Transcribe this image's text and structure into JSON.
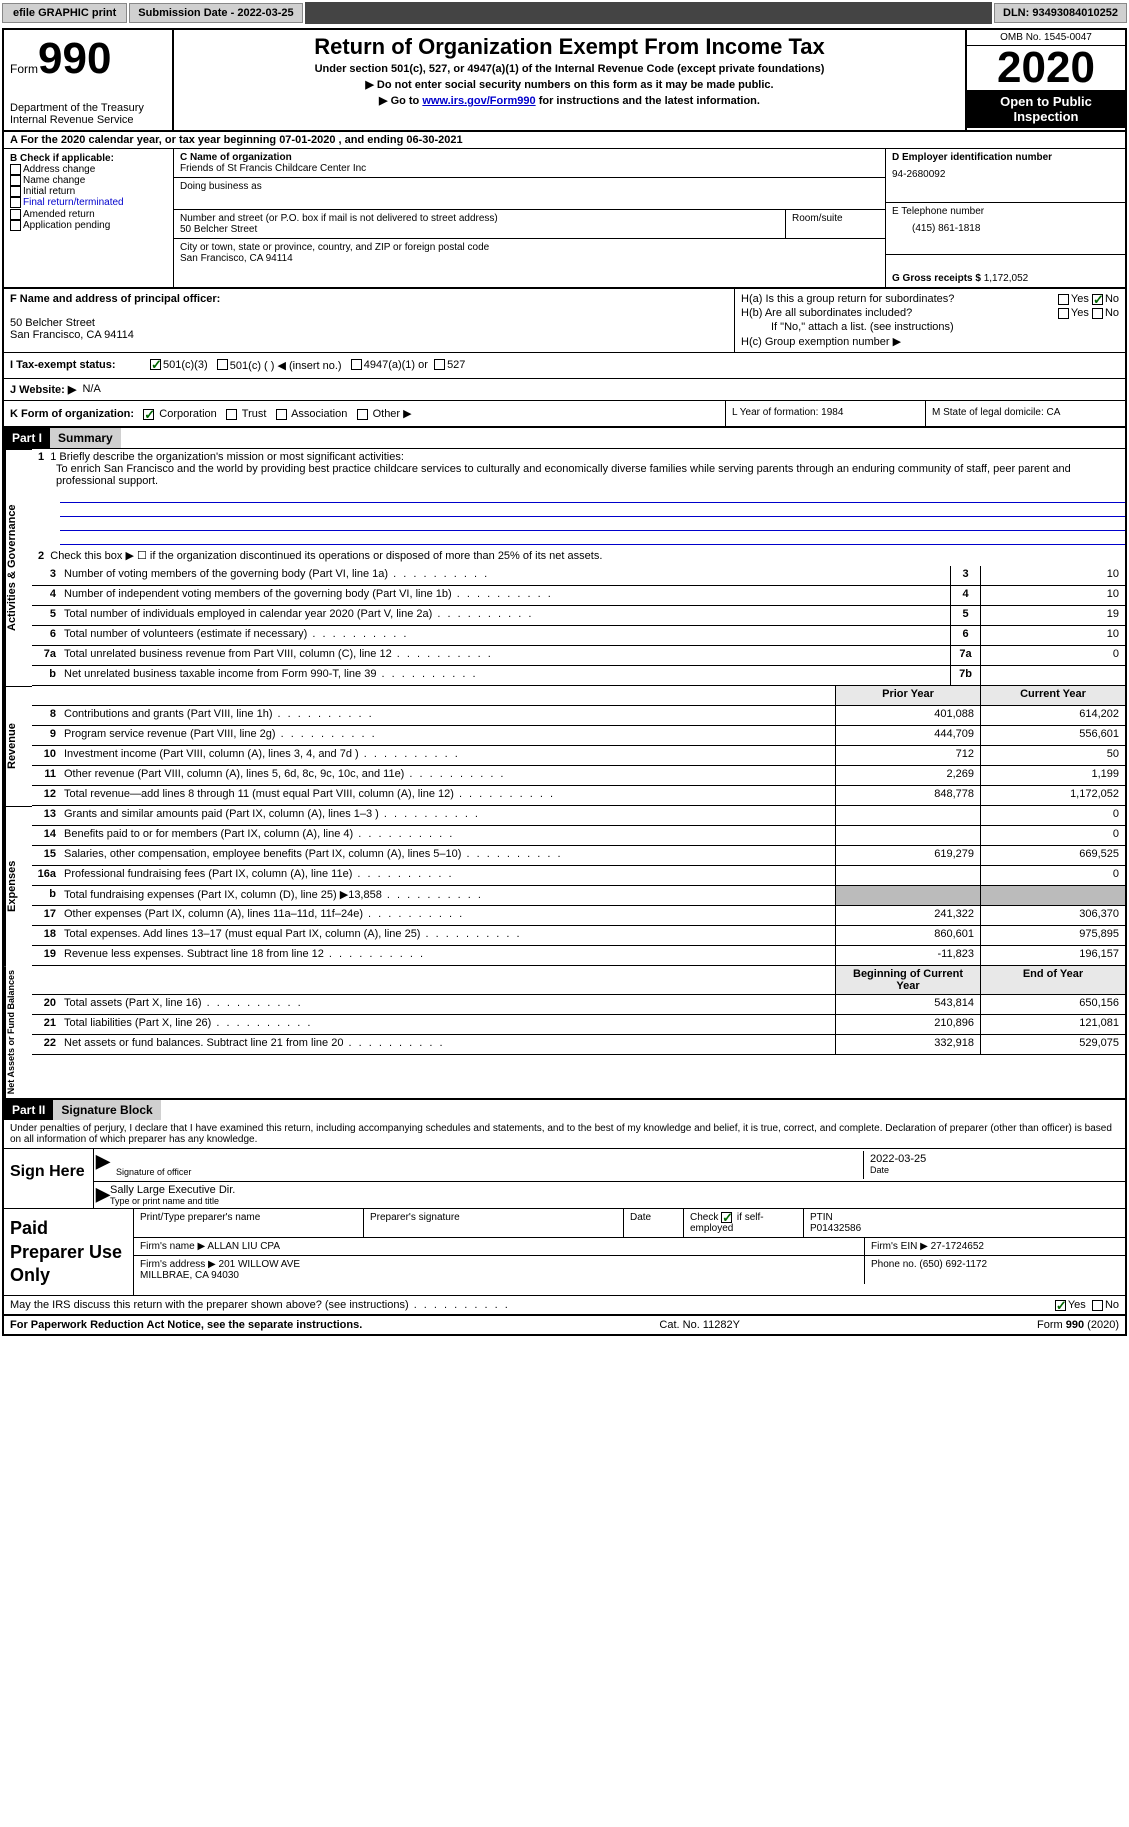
{
  "topbar": {
    "efile": "efile GRAPHIC print",
    "subdate_lbl": "Submission Date -",
    "subdate": "2022-03-25",
    "dln_lbl": "DLN:",
    "dln": "93493084010252"
  },
  "header": {
    "form_word": "Form",
    "form_num": "990",
    "dept": "Department of the Treasury\nInternal Revenue Service",
    "title": "Return of Organization Exempt From Income Tax",
    "sub1": "Under section 501(c), 527, or 4947(a)(1) of the Internal Revenue Code (except private foundations)",
    "sub2": "▶ Do not enter social security numbers on this form as it may be made public.",
    "sub3_pre": "▶ Go to ",
    "sub3_link": "www.irs.gov/Form990",
    "sub3_post": " for instructions and the latest information.",
    "omb": "OMB No. 1545-0047",
    "year": "2020",
    "open": "Open to Public Inspection"
  },
  "rowA": "A For the 2020 calendar year, or tax year beginning 07-01-2020    , and ending 06-30-2021",
  "colB": {
    "hdr": "B Check if applicable:",
    "opts": [
      "Address change",
      "Name change",
      "Initial return",
      "Final return/terminated",
      "Amended return",
      "Application pending"
    ]
  },
  "colC": {
    "name_lbl": "C Name of organization",
    "name": "Friends of St Francis Childcare Center Inc",
    "dba_lbl": "Doing business as",
    "addr_lbl": "Number and street (or P.O. box if mail is not delivered to street address)",
    "room_lbl": "Room/suite",
    "addr": "50 Belcher Street",
    "city_lbl": "City or town, state or province, country, and ZIP or foreign postal code",
    "city": "San Francisco, CA  94114"
  },
  "colD": {
    "ein_lbl": "D Employer identification number",
    "ein": "94-2680092",
    "tel_lbl": "E Telephone number",
    "tel": "(415) 861-1818",
    "gross_lbl": "G Gross receipts $",
    "gross": "1,172,052"
  },
  "sectionF": {
    "f_lbl": "F Name and address of principal officer:",
    "f_addr": "50 Belcher Street\nSan Francisco, CA  94114",
    "ha": "H(a)  Is this a group return for subordinates?",
    "hb": "H(b)  Are all subordinates included?",
    "hb_note": "If \"No,\" attach a list. (see instructions)",
    "hc": "H(c)  Group exemption number ▶",
    "yes": "Yes",
    "no": "No"
  },
  "rowI": {
    "lbl": "I  Tax-exempt status:",
    "o1": "501(c)(3)",
    "o2": "501(c) (   ) ◀ (insert no.)",
    "o3": "4947(a)(1) or",
    "o4": "527"
  },
  "rowJ": {
    "lbl": "J  Website: ▶",
    "val": "N/A"
  },
  "rowK": {
    "lbl": "K Form of organization:",
    "o1": "Corporation",
    "o2": "Trust",
    "o3": "Association",
    "o4": "Other ▶",
    "l": "L Year of formation: 1984",
    "m": "M State of legal domicile: CA"
  },
  "part1": {
    "hdr": "Part I",
    "title": "Summary",
    "l1_lbl": "1  Briefly describe the organization's mission or most significant activities:",
    "l1_text": "To enrich San Francisco and the world by providing best practice childcare services to culturally and economically diverse families while serving parents through an enduring community of staff, peer parent and professional support.",
    "l2": "Check this box ▶ ☐  if the organization discontinued its operations or disposed of more than 25% of its net assets.",
    "lines_a": [
      {
        "n": "3",
        "t": "Number of voting members of the governing body (Part VI, line 1a)",
        "c": "3",
        "v": "10"
      },
      {
        "n": "4",
        "t": "Number of independent voting members of the governing body (Part VI, line 1b)",
        "c": "4",
        "v": "10"
      },
      {
        "n": "5",
        "t": "Total number of individuals employed in calendar year 2020 (Part V, line 2a)",
        "c": "5",
        "v": "19"
      },
      {
        "n": "6",
        "t": "Total number of volunteers (estimate if necessary)",
        "c": "6",
        "v": "10"
      },
      {
        "n": "7a",
        "t": "Total unrelated business revenue from Part VIII, column (C), line 12",
        "c": "7a",
        "v": "0"
      },
      {
        "n": "b",
        "t": "Net unrelated business taxable income from Form 990-T, line 39",
        "c": "7b",
        "v": ""
      }
    ],
    "hdr_prior": "Prior Year",
    "hdr_curr": "Current Year",
    "revenue": [
      {
        "n": "8",
        "t": "Contributions and grants (Part VIII, line 1h)",
        "p": "401,088",
        "c": "614,202"
      },
      {
        "n": "9",
        "t": "Program service revenue (Part VIII, line 2g)",
        "p": "444,709",
        "c": "556,601"
      },
      {
        "n": "10",
        "t": "Investment income (Part VIII, column (A), lines 3, 4, and 7d )",
        "p": "712",
        "c": "50"
      },
      {
        "n": "11",
        "t": "Other revenue (Part VIII, column (A), lines 5, 6d, 8c, 9c, 10c, and 11e)",
        "p": "2,269",
        "c": "1,199"
      },
      {
        "n": "12",
        "t": "Total revenue—add lines 8 through 11 (must equal Part VIII, column (A), line 12)",
        "p": "848,778",
        "c": "1,172,052"
      }
    ],
    "expenses": [
      {
        "n": "13",
        "t": "Grants and similar amounts paid (Part IX, column (A), lines 1–3 )",
        "p": "",
        "c": "0"
      },
      {
        "n": "14",
        "t": "Benefits paid to or for members (Part IX, column (A), line 4)",
        "p": "",
        "c": "0"
      },
      {
        "n": "15",
        "t": "Salaries, other compensation, employee benefits (Part IX, column (A), lines 5–10)",
        "p": "619,279",
        "c": "669,525"
      },
      {
        "n": "16a",
        "t": "Professional fundraising fees (Part IX, column (A), line 11e)",
        "p": "",
        "c": "0"
      },
      {
        "n": "b",
        "t": "Total fundraising expenses (Part IX, column (D), line 25) ▶13,858",
        "p": "GREY",
        "c": "GREY"
      },
      {
        "n": "17",
        "t": "Other expenses (Part IX, column (A), lines 11a–11d, 11f–24e)",
        "p": "241,322",
        "c": "306,370"
      },
      {
        "n": "18",
        "t": "Total expenses. Add lines 13–17 (must equal Part IX, column (A), line 25)",
        "p": "860,601",
        "c": "975,895"
      },
      {
        "n": "19",
        "t": "Revenue less expenses. Subtract line 18 from line 12",
        "p": "-11,823",
        "c": "196,157"
      }
    ],
    "hdr_beg": "Beginning of Current Year",
    "hdr_end": "End of Year",
    "netassets": [
      {
        "n": "20",
        "t": "Total assets (Part X, line 16)",
        "p": "543,814",
        "c": "650,156"
      },
      {
        "n": "21",
        "t": "Total liabilities (Part X, line 26)",
        "p": "210,896",
        "c": "121,081"
      },
      {
        "n": "22",
        "t": "Net assets or fund balances. Subtract line 21 from line 20",
        "p": "332,918",
        "c": "529,075"
      }
    ]
  },
  "part2": {
    "hdr": "Part II",
    "title": "Signature Block",
    "decl": "Under penalties of perjury, I declare that I have examined this return, including accompanying schedules and statements, and to the best of my knowledge and belief, it is true, correct, and complete. Declaration of preparer (other than officer) is based on all information of which preparer has any knowledge.",
    "sign_here": "Sign Here",
    "sig_lbl": "Signature of officer",
    "date_lbl": "Date",
    "sig_date": "2022-03-25",
    "name_lbl": "Type or print name and title",
    "name": "Sally Large  Executive Dir.",
    "paid": "Paid Preparer Use Only",
    "p1": "Print/Type preparer's name",
    "p2": "Preparer's signature",
    "p3": "Date",
    "p4_pre": "Check",
    "p4_post": "if self-employed",
    "p5": "PTIN",
    "ptin": "P01432586",
    "firm_name_lbl": "Firm's name    ▶",
    "firm_name": "ALLAN LIU CPA",
    "firm_ein_lbl": "Firm's EIN ▶",
    "firm_ein": "27-1724652",
    "firm_addr_lbl": "Firm's address ▶",
    "firm_addr": "201 WILLOW AVE\nMILLBRAE, CA  94030",
    "phone_lbl": "Phone no.",
    "phone": "(650) 692-1172",
    "discuss": "May the IRS discuss this return with the preparer shown above? (see instructions)"
  },
  "footer": {
    "left": "For Paperwork Reduction Act Notice, see the separate instructions.",
    "mid": "Cat. No. 11282Y",
    "right": "Form 990 (2020)"
  },
  "colors": {
    "grey": "#d0d0d0",
    "dark": "#444444",
    "link": "#0000cc",
    "check": "#006600"
  }
}
